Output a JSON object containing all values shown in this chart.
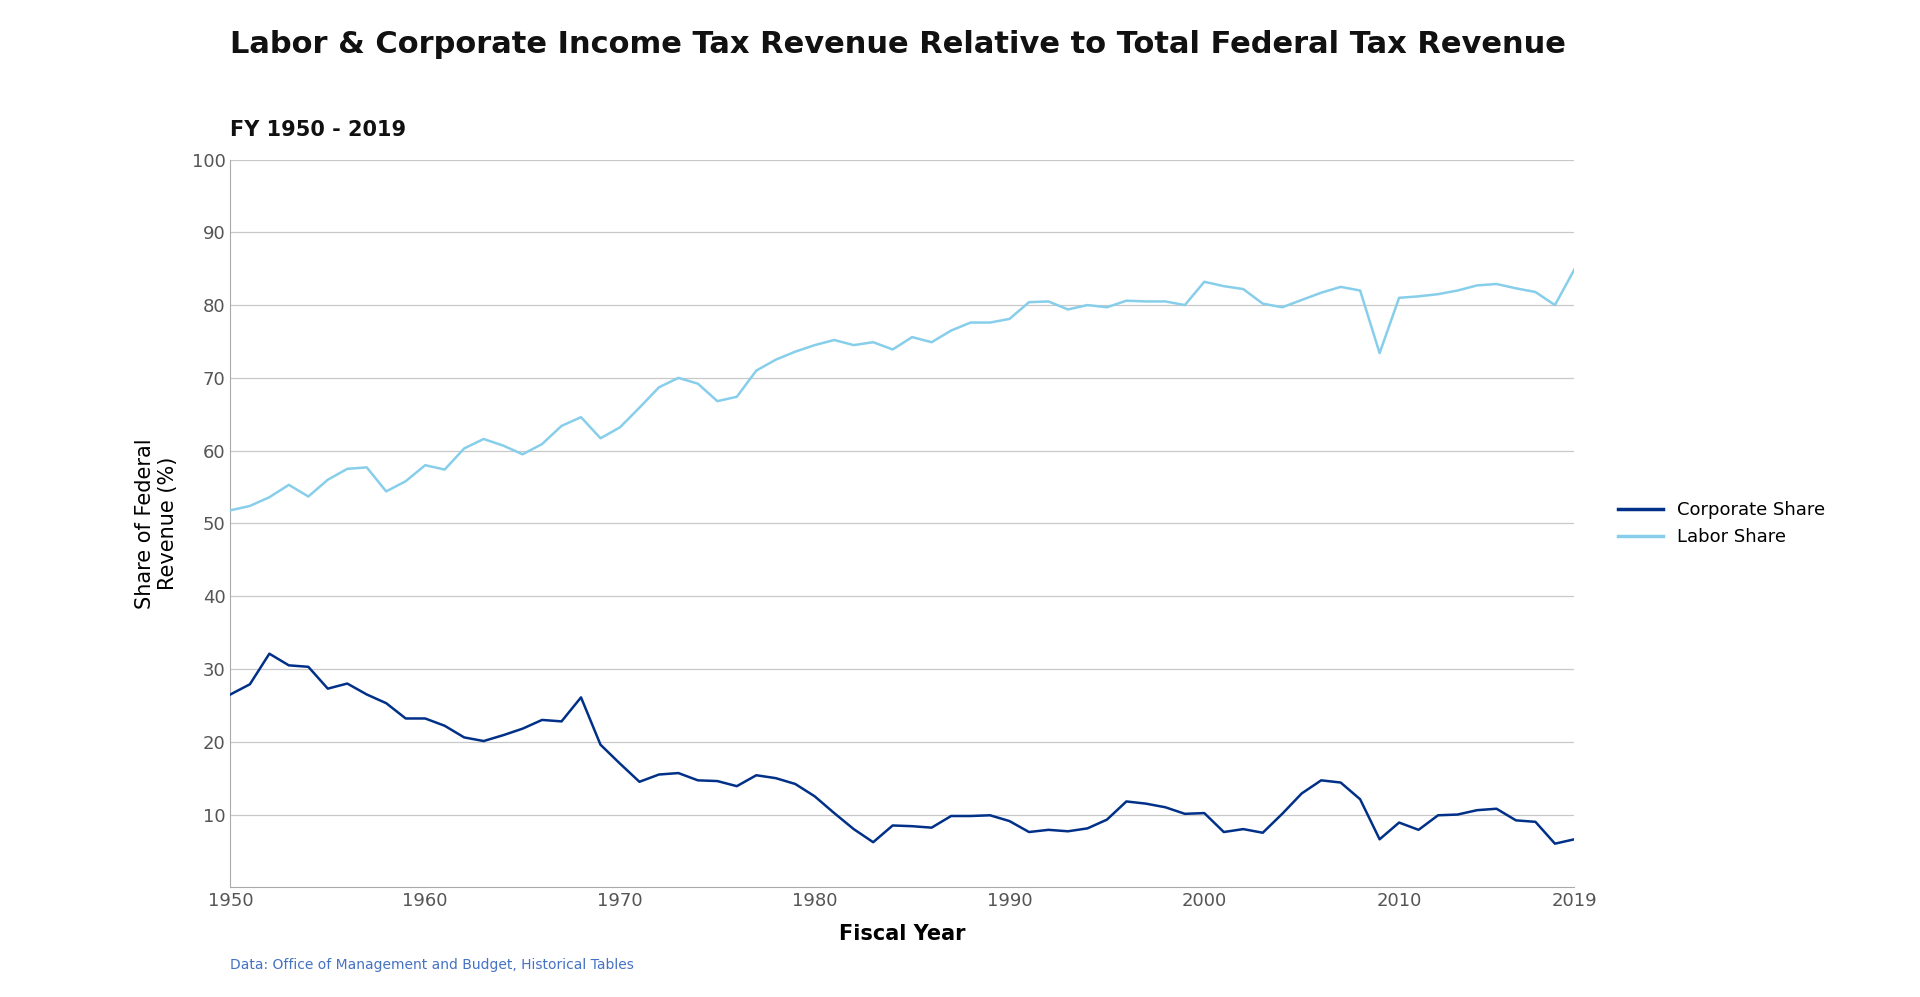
{
  "title": "Labor & Corporate Income Tax Revenue Relative to Total Federal Tax Revenue",
  "subtitle": "FY 1950 - 2019",
  "xlabel": "Fiscal Year",
  "ylabel": "Share of Federal\nRevenue (%)",
  "source": "Data: Office of Management and Budget, Historical Tables",
  "years": [
    1950,
    1951,
    1952,
    1953,
    1954,
    1955,
    1956,
    1957,
    1958,
    1959,
    1960,
    1961,
    1962,
    1963,
    1964,
    1965,
    1966,
    1967,
    1968,
    1969,
    1970,
    1971,
    1972,
    1973,
    1974,
    1975,
    1976,
    1977,
    1978,
    1979,
    1980,
    1981,
    1982,
    1983,
    1984,
    1985,
    1986,
    1987,
    1988,
    1989,
    1990,
    1991,
    1992,
    1993,
    1994,
    1995,
    1996,
    1997,
    1998,
    1999,
    2000,
    2001,
    2002,
    2003,
    2004,
    2005,
    2006,
    2007,
    2008,
    2009,
    2010,
    2011,
    2012,
    2013,
    2014,
    2015,
    2016,
    2017,
    2018,
    2019
  ],
  "corporate_share": [
    26.5,
    27.9,
    32.1,
    30.5,
    30.3,
    27.3,
    28.0,
    26.5,
    25.3,
    23.2,
    23.2,
    22.2,
    20.6,
    20.1,
    20.9,
    21.8,
    23.0,
    22.8,
    26.1,
    19.6,
    17.0,
    14.5,
    15.5,
    15.7,
    14.7,
    14.6,
    13.9,
    15.4,
    15.0,
    14.2,
    12.5,
    10.2,
    8.0,
    6.2,
    8.5,
    8.4,
    8.2,
    9.8,
    9.8,
    9.9,
    9.1,
    7.6,
    7.9,
    7.7,
    8.1,
    9.3,
    11.8,
    11.5,
    11.0,
    10.1,
    10.2,
    7.6,
    8.0,
    7.5,
    10.1,
    12.9,
    14.7,
    14.4,
    12.1,
    6.6,
    8.9,
    7.9,
    9.9,
    10.0,
    10.6,
    10.8,
    9.2,
    9.0,
    6.0,
    6.6
  ],
  "labor_share": [
    51.8,
    52.4,
    53.6,
    55.3,
    53.7,
    56.0,
    57.5,
    57.7,
    54.4,
    55.8,
    58.0,
    57.4,
    60.3,
    61.6,
    60.7,
    59.5,
    60.9,
    63.4,
    64.6,
    61.7,
    63.2,
    65.9,
    68.7,
    70.0,
    69.2,
    66.8,
    67.4,
    71.0,
    72.5,
    73.6,
    74.5,
    75.2,
    74.5,
    74.9,
    73.9,
    75.6,
    74.9,
    76.5,
    77.6,
    77.6,
    78.1,
    80.4,
    80.5,
    79.4,
    80.0,
    79.7,
    80.6,
    80.5,
    80.5,
    80.0,
    83.2,
    82.6,
    82.2,
    80.2,
    79.7,
    80.7,
    81.7,
    82.5,
    82.0,
    73.4,
    81.0,
    81.2,
    81.5,
    82.0,
    82.7,
    82.9,
    82.3,
    81.8,
    80.0,
    84.9
  ],
  "corporate_color": "#003087",
  "labor_color": "#87CEEB",
  "ylim": [
    0,
    100
  ],
  "yticks": [
    10,
    20,
    30,
    40,
    50,
    60,
    70,
    80,
    90,
    100
  ],
  "xticks": [
    1950,
    1960,
    1970,
    1980,
    1990,
    2000,
    2010,
    2019
  ],
  "bg_color": "#ffffff",
  "grid_color": "#c8c8c8",
  "title_fontsize": 22,
  "subtitle_fontsize": 15,
  "axis_label_fontsize": 15,
  "tick_fontsize": 13,
  "legend_fontsize": 13,
  "source_fontsize": 10,
  "linewidth": 1.8
}
